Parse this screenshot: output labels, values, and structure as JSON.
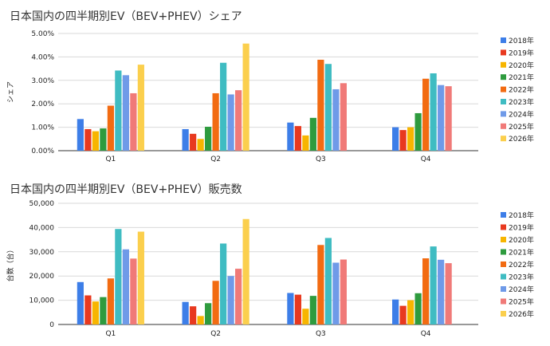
{
  "legend_labels": [
    "2018年",
    "2019年",
    "2020年",
    "2021年",
    "2022年",
    "2023年",
    "2024年",
    "2025年",
    "2026年"
  ],
  "colors": [
    "#3d7ee8",
    "#e8391f",
    "#f7b500",
    "#2e9b3e",
    "#f26b12",
    "#3fbcc2",
    "#6f9ae8",
    "#f07a78",
    "#fbcf4d"
  ],
  "chart_data": [
    {
      "type": "bar",
      "title": "日本国内の四半期別EV（BEV+PHEV）シェア",
      "ylabel": "シェア",
      "xlabel": "",
      "categories": [
        "Q1",
        "Q2",
        "Q3",
        "Q4"
      ],
      "ylim": [
        0,
        5
      ],
      "yticks": [
        "0.00%",
        "1.00%",
        "2.00%",
        "3.00%",
        "4.00%",
        "5.00%"
      ],
      "legend_position": "right",
      "grid": true,
      "series": [
        {
          "name": "2018年",
          "values": [
            1.35,
            0.92,
            1.2,
            1.0
          ]
        },
        {
          "name": "2019年",
          "values": [
            0.92,
            0.72,
            1.05,
            0.88
          ]
        },
        {
          "name": "2020年",
          "values": [
            0.83,
            0.5,
            0.65,
            1.0
          ]
        },
        {
          "name": "2021年",
          "values": [
            0.95,
            1.02,
            1.4,
            1.6
          ]
        },
        {
          "name": "2022年",
          "values": [
            1.92,
            2.45,
            3.88,
            3.07
          ]
        },
        {
          "name": "2023年",
          "values": [
            3.42,
            3.75,
            3.7,
            3.3
          ]
        },
        {
          "name": "2024年",
          "values": [
            3.22,
            2.4,
            2.62,
            2.8
          ]
        },
        {
          "name": "2025年",
          "values": [
            2.45,
            2.58,
            2.88,
            2.75
          ]
        },
        {
          "name": "2026年",
          "values": [
            3.67,
            4.57,
            null,
            null
          ]
        }
      ]
    },
    {
      "type": "bar",
      "title": "日本国内の四半期別EV（BEV+PHEV）販売数",
      "ylabel": "台数（台）",
      "xlabel": "",
      "categories": [
        "Q1",
        "Q2",
        "Q3",
        "Q4"
      ],
      "ylim": [
        0,
        50000
      ],
      "yticks": [
        "0",
        "10,000",
        "20,000",
        "30,000",
        "40,000",
        "50,000"
      ],
      "legend_position": "right",
      "grid": true,
      "series": [
        {
          "name": "2018年",
          "values": [
            17500,
            9300,
            13000,
            10300
          ]
        },
        {
          "name": "2019年",
          "values": [
            12000,
            7500,
            12300,
            7700
          ]
        },
        {
          "name": "2020年",
          "values": [
            9500,
            3500,
            6500,
            10000
          ]
        },
        {
          "name": "2021年",
          "values": [
            11300,
            8800,
            11800,
            12900
          ]
        },
        {
          "name": "2022年",
          "values": [
            19000,
            18000,
            32800,
            27300
          ]
        },
        {
          "name": "2023年",
          "values": [
            39400,
            33400,
            35700,
            32200
          ]
        },
        {
          "name": "2024年",
          "values": [
            31000,
            20000,
            25500,
            26700
          ]
        },
        {
          "name": "2025年",
          "values": [
            27200,
            23000,
            26800,
            25300
          ]
        },
        {
          "name": "2026年",
          "values": [
            38300,
            43500,
            null,
            null
          ]
        }
      ]
    }
  ]
}
